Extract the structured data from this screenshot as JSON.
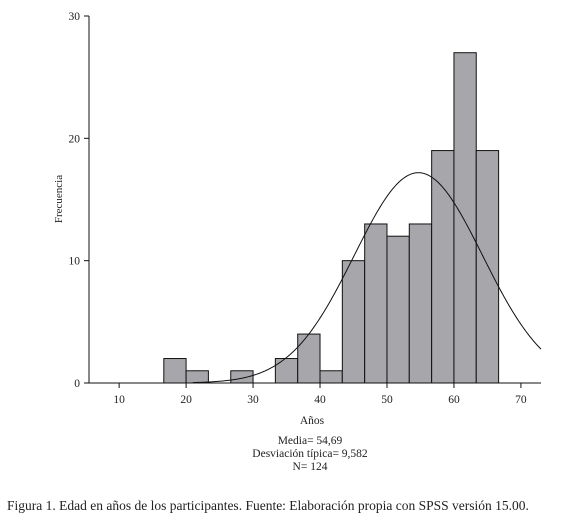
{
  "chart_data": {
    "type": "bar",
    "subtype": "histogram",
    "xlabel": "Años",
    "ylabel": "Frecuencia",
    "xlim": [
      5.5,
      73
    ],
    "ylim": [
      0,
      30
    ],
    "x_ticks": [
      10,
      20,
      30,
      40,
      50,
      60,
      70
    ],
    "y_ticks": [
      0,
      10,
      20,
      30
    ],
    "bin_width": 3.33,
    "bins": [
      {
        "start": 16.67,
        "end": 20.0,
        "count": 2
      },
      {
        "start": 20.0,
        "end": 23.33,
        "count": 1
      },
      {
        "start": 26.67,
        "end": 30.0,
        "count": 1
      },
      {
        "start": 33.33,
        "end": 36.67,
        "count": 2
      },
      {
        "start": 36.67,
        "end": 40.0,
        "count": 4
      },
      {
        "start": 40.0,
        "end": 43.33,
        "count": 1
      },
      {
        "start": 43.33,
        "end": 46.67,
        "count": 10
      },
      {
        "start": 46.67,
        "end": 50.0,
        "count": 13
      },
      {
        "start": 50.0,
        "end": 53.33,
        "count": 12
      },
      {
        "start": 53.33,
        "end": 56.67,
        "count": 13
      },
      {
        "start": 56.67,
        "end": 60.0,
        "count": 19
      },
      {
        "start": 60.0,
        "end": 63.33,
        "count": 27
      },
      {
        "start": 63.33,
        "end": 66.67,
        "count": 19
      }
    ],
    "normal_curve": {
      "mean": 54.69,
      "sd": 9.582,
      "n": 124
    },
    "bar_color": "#a7a7ab",
    "grid": false,
    "legend": "none"
  },
  "stats": {
    "mean_label": "Media= 54,69",
    "sd_label": "Desviación típica= 9,582",
    "n_label": "N= 124"
  },
  "caption": "Figura 1. Edad en años de los participantes. Fuente: Elaboración propia con SPSS versión 15.00."
}
